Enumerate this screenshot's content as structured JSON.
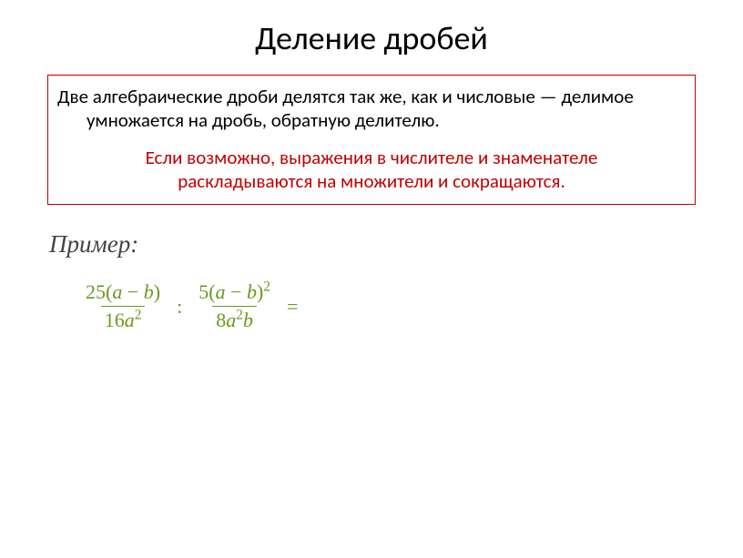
{
  "colors": {
    "title": "#000000",
    "box_border": "#c00000",
    "rule_text": "#000000",
    "note_text": "#c00000",
    "example_label": "#444444",
    "formula": "#6a9a1f",
    "formula_rule": "#6a9a1f"
  },
  "title": "Деление дробей",
  "rule_line1": "Две алгебраические дроби делятся так же, как и числовые — делимое умножается на дробь, обратную делителю.",
  "rule_line2": "Если возможно, выражения в числителе и знаменателе раскладываются на множители и сокращаются.",
  "example_label": "Пример:",
  "formula": {
    "frac1": {
      "num_coef": "25",
      "num_pre": "(",
      "num_var1": "a",
      "num_op": " − ",
      "num_var2": "b",
      "num_post": ")",
      "den_coef": "16",
      "den_var": "a",
      "den_pow": "2"
    },
    "op_div": ":",
    "frac2": {
      "num_coef": "5",
      "num_pre": "(",
      "num_var1": "a",
      "num_op": " − ",
      "num_var2": "b",
      "num_post": ")",
      "num_pow": "2",
      "den_coef": "8",
      "den_var1": "a",
      "den_pow1": "2",
      "den_var2": "b"
    },
    "op_eq": "="
  }
}
